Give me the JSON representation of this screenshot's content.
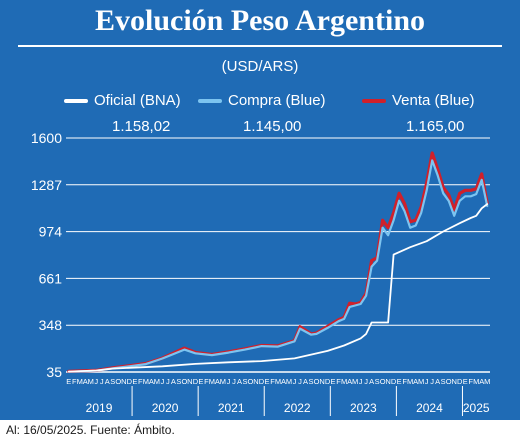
{
  "header": {
    "title": "Evolución Peso Argentino",
    "unit": "(USD/ARS)"
  },
  "legend": [
    {
      "label": "Oficial (BNA)",
      "value": "1.158,02",
      "color": "#ffffff"
    },
    {
      "label": "Compra (Blue)",
      "value": "1.145,00",
      "color": "#7cc4f0"
    },
    {
      "label": "Venta (Blue)",
      "value": "1.165,00",
      "color": "#d0202a"
    }
  ],
  "footnote": "Al: 16/05/2025. Fuente: Ámbito.",
  "colors": {
    "background": "#1f6bb5",
    "grid": "#ffffff",
    "official": "#ffffff",
    "blue_buy": "#7cc4f0",
    "blue_sell": "#d0202a"
  },
  "chart_data": {
    "type": "line",
    "title": "Evolución Peso Argentino",
    "ylabel": "(USD/ARS)",
    "ylim": [
      35,
      1600
    ],
    "yticks": [
      35,
      348,
      661,
      974,
      1287,
      1600
    ],
    "ytick_labels": [
      "35",
      "348",
      "661",
      "974",
      "1287",
      "1600"
    ],
    "grid": true,
    "legend_position": "top",
    "x_start": "2019-01",
    "x_end": "2025-05",
    "month_letters": [
      "E",
      "F",
      "M",
      "A",
      "M",
      "J",
      "J",
      "A",
      "S",
      "O",
      "N",
      "D"
    ],
    "years": [
      "2019",
      "2020",
      "2021",
      "2022",
      "2023",
      "2024",
      "2025"
    ],
    "series": [
      {
        "name": "Oficial (BNA)",
        "x": [
          "2019-01",
          "2019-06",
          "2019-09",
          "2019-12",
          "2020-06",
          "2020-12",
          "2021-06",
          "2021-12",
          "2022-06",
          "2022-12",
          "2023-03",
          "2023-06",
          "2023-07",
          "2023-08",
          "2023-10",
          "2023-11",
          "2023-12",
          "2024-03",
          "2024-06",
          "2024-09",
          "2024-12",
          "2025-02",
          "2025-03",
          "2025-04",
          "2025-05"
        ],
        "values": [
          38,
          45,
          58,
          63,
          73,
          89,
          100,
          108,
          126,
          176,
          212,
          260,
          290,
          366,
          366,
          366,
          820,
          870,
          910,
          975,
          1030,
          1065,
          1080,
          1130,
          1158
        ]
      },
      {
        "name": "Compra (Blue)",
        "x": [
          "2019-01",
          "2019-06",
          "2019-09",
          "2019-12",
          "2020-03",
          "2020-06",
          "2020-10",
          "2020-12",
          "2021-03",
          "2021-06",
          "2021-09",
          "2021-12",
          "2022-03",
          "2022-06",
          "2022-07",
          "2022-09",
          "2022-10",
          "2022-12",
          "2023-02",
          "2023-03",
          "2023-04",
          "2023-05",
          "2023-06",
          "2023-07",
          "2023-08",
          "2023-09",
          "2023-10",
          "2023-11",
          "2023-12",
          "2024-01",
          "2024-02",
          "2024-03",
          "2024-04",
          "2024-05",
          "2024-06",
          "2024-07",
          "2024-08",
          "2024-09",
          "2024-10",
          "2024-11",
          "2024-12",
          "2025-01",
          "2025-02",
          "2025-03",
          "2025-04",
          "2025-05"
        ],
        "values": [
          37,
          44,
          60,
          73,
          88,
          125,
          185,
          160,
          148,
          165,
          185,
          208,
          205,
          240,
          325,
          285,
          290,
          330,
          375,
          390,
          470,
          480,
          490,
          545,
          740,
          780,
          1000,
          950,
          1050,
          1180,
          1110,
          1000,
          1015,
          1100,
          1250,
          1450,
          1350,
          1230,
          1180,
          1080,
          1180,
          1210,
          1210,
          1225,
          1320,
          1145
        ]
      },
      {
        "name": "Venta (Blue)",
        "x": [
          "2019-01",
          "2019-06",
          "2019-09",
          "2019-12",
          "2020-03",
          "2020-06",
          "2020-10",
          "2020-12",
          "2021-03",
          "2021-06",
          "2021-09",
          "2021-12",
          "2022-03",
          "2022-06",
          "2022-07",
          "2022-09",
          "2022-10",
          "2022-12",
          "2023-02",
          "2023-03",
          "2023-04",
          "2023-05",
          "2023-06",
          "2023-07",
          "2023-08",
          "2023-09",
          "2023-10",
          "2023-11",
          "2023-12",
          "2024-01",
          "2024-02",
          "2024-03",
          "2024-04",
          "2024-05",
          "2024-06",
          "2024-07",
          "2024-08",
          "2024-09",
          "2024-10",
          "2024-11",
          "2024-12",
          "2025-01",
          "2025-02",
          "2025-03",
          "2025-04",
          "2025-05"
        ],
        "values": [
          39,
          46,
          63,
          77,
          92,
          128,
          195,
          166,
          152,
          170,
          190,
          212,
          210,
          245,
          338,
          290,
          295,
          340,
          385,
          400,
          495,
          490,
          500,
          560,
          780,
          800,
          1050,
          1000,
          1100,
          1230,
          1160,
          1040,
          1050,
          1140,
          1300,
          1500,
          1390,
          1270,
          1220,
          1120,
          1230,
          1250,
          1250,
          1260,
          1360,
          1165
        ]
      }
    ]
  }
}
